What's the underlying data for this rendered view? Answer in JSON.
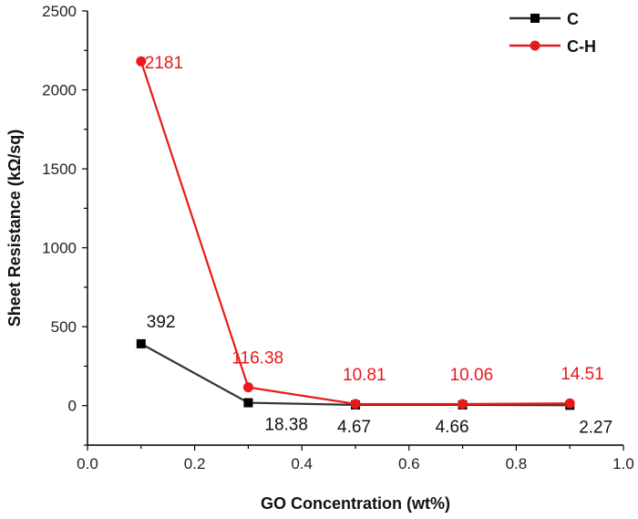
{
  "chart_data": {
    "type": "line",
    "title": "",
    "xlabel": "GO Concentration (wt%)",
    "ylabel": "Sheet Resistance (kΩ/sq)",
    "xlim": [
      0.0,
      1.0
    ],
    "ylim": [
      -250,
      2500
    ],
    "xticks": [
      "0.0",
      "0.2",
      "0.4",
      "0.6",
      "0.8",
      "1.0"
    ],
    "yticks": [
      "0",
      "500",
      "1000",
      "1500",
      "2000",
      "2500"
    ],
    "grid": false,
    "legend_position": "top-right",
    "x": [
      0.1,
      0.3,
      0.5,
      0.7,
      0.9
    ],
    "series": [
      {
        "name": "C",
        "color": "#333333",
        "marker": "square",
        "values": [
          392,
          18.38,
          4.67,
          4.66,
          2.27
        ],
        "labels": [
          "392",
          "18.38",
          "4.67",
          "4.66",
          "2.27"
        ]
      },
      {
        "name": "C-H",
        "color": "#e8191b",
        "marker": "circle",
        "values": [
          2181,
          116.38,
          10.81,
          10.06,
          14.51
        ],
        "labels": [
          "2181",
          "116.38",
          "10.81",
          "10.06",
          "14.51"
        ]
      }
    ]
  }
}
